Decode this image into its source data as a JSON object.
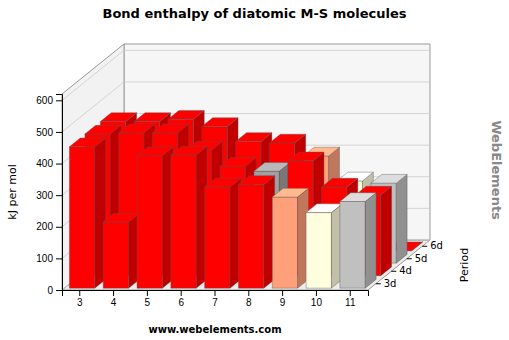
{
  "chart_data": {
    "type": "bar3d",
    "title": "Bond enthalpy of diatomic M-S molecules",
    "ylabel": "kJ per mol",
    "zlabel": "Period",
    "annotations": [
      "www.webelements.com",
      "WebElements"
    ],
    "categories": [
      "3",
      "4",
      "5",
      "6",
      "7",
      "8",
      "9",
      "10",
      "11"
    ],
    "series": [
      {
        "name": "3d",
        "values": [
          447,
          209,
          419,
          421,
          320,
          328,
          288,
          239,
          274
        ],
        "colors": [
          "#ff0000",
          "#ff0000",
          "#ff0000",
          "#ff0000",
          "#ff0000",
          "#ff0000",
          "#ffa07a",
          "#ffffe0",
          "#c0c0c0"
        ]
      },
      {
        "name": "4d",
        "values": [
          448,
          452,
          452,
          397,
          346,
          330,
          363,
          280,
          255
        ],
        "colors": [
          "#ff0000",
          "#ff0000",
          "#ff0000",
          "#ff0000",
          "#ff0000",
          "#a0a0a0",
          "#ff0000",
          "#ff0000",
          "#ff0000"
        ]
      },
      {
        "name": "5d",
        "values": [
          448,
          448,
          455,
          432,
          385,
          380,
          339,
          260,
          253
        ],
        "colors": [
          "#ff0000",
          "#ff0000",
          "#ff0000",
          "#ff0000",
          "#ff0000",
          "#ff0000",
          "#ffa07a",
          "#ffffe0",
          "#c0c0c0"
        ]
      },
      {
        "name": "6d",
        "values": [
          0,
          0,
          0,
          0,
          0,
          0,
          0,
          0,
          0
        ],
        "colors": [
          "#ff0000",
          "#ff0000",
          "#ff0000",
          "#ff0000",
          "#ff0000",
          "#ff0000",
          "#ff0000",
          "#ff0000",
          "#ff0000"
        ]
      }
    ],
    "ylim": [
      0,
      620
    ],
    "yticks": [
      0,
      100,
      200,
      300,
      400,
      500,
      600
    ],
    "grid": true
  }
}
